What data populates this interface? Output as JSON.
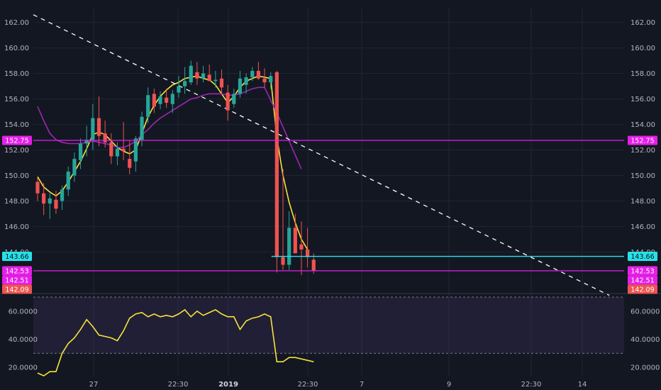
{
  "chart_data": [
    {
      "type": "candlestick",
      "ylim": [
        140.8,
        163.2
      ],
      "y_ticks": [
        "162.00",
        "160.00",
        "158.00",
        "156.00",
        "154.00",
        "152.00",
        "150.00",
        "148.00",
        "146.00",
        "144.00"
      ],
      "x_ticks": [
        "27",
        "22:30",
        "2019",
        "22:30",
        "7",
        "9",
        "22:30",
        "14"
      ],
      "grid": true,
      "up_color": "#26a69a",
      "down_color": "#ef5350",
      "candles": [
        [
          149.5,
          149.8,
          148.0,
          148.6
        ],
        [
          148.6,
          149.4,
          146.9,
          147.8
        ],
        [
          147.8,
          148.6,
          146.6,
          148.2
        ],
        [
          148.1,
          148.8,
          147.0,
          147.4
        ],
        [
          148.0,
          149.2,
          147.3,
          148.9
        ],
        [
          148.9,
          150.7,
          148.4,
          150.3
        ],
        [
          150.0,
          151.8,
          149.5,
          151.3
        ],
        [
          151.2,
          152.9,
          150.5,
          152.5
        ],
        [
          152.5,
          153.9,
          151.5,
          152.8
        ],
        [
          152.8,
          155.6,
          152.0,
          154.5
        ],
        [
          154.5,
          156.2,
          152.3,
          153.1
        ],
        [
          153.3,
          154.3,
          152.2,
          152.6
        ],
        [
          152.6,
          153.3,
          150.9,
          151.5
        ],
        [
          151.5,
          152.6,
          150.8,
          152.1
        ],
        [
          152.1,
          154.2,
          151.2,
          151.9
        ],
        [
          151.3,
          152.7,
          150.1,
          150.6
        ],
        [
          151.1,
          153.1,
          150.3,
          152.9
        ],
        [
          152.8,
          155.0,
          152.3,
          154.6
        ],
        [
          154.6,
          156.9,
          154.1,
          156.3
        ],
        [
          156.4,
          156.8,
          154.9,
          155.4
        ],
        [
          155.6,
          156.6,
          155.2,
          156.2
        ],
        [
          156.1,
          156.8,
          155.3,
          155.7
        ],
        [
          155.6,
          156.7,
          154.9,
          156.4
        ],
        [
          156.5,
          157.8,
          156.1,
          157.0
        ],
        [
          157.0,
          158.5,
          156.4,
          157.4
        ],
        [
          157.3,
          159.0,
          157.1,
          158.6
        ],
        [
          158.1,
          158.9,
          157.1,
          157.6
        ],
        [
          157.6,
          158.6,
          157.3,
          158.0
        ],
        [
          157.9,
          158.7,
          157.5,
          157.4
        ],
        [
          157.4,
          158.2,
          156.9,
          157.5
        ],
        [
          157.6,
          158.3,
          156.4,
          156.9
        ],
        [
          156.5,
          157.1,
          154.3,
          155.1
        ],
        [
          155.6,
          156.8,
          155.3,
          156.4
        ],
        [
          156.4,
          158.2,
          156.1,
          157.6
        ],
        [
          157.1,
          158.0,
          156.4,
          157.7
        ],
        [
          157.7,
          158.5,
          157.4,
          158.2
        ],
        [
          158.2,
          158.9,
          157.5,
          157.6
        ],
        [
          157.6,
          158.4,
          156.9,
          157.3
        ],
        [
          157.3,
          158.1,
          156.8,
          157.8
        ],
        [
          158.1,
          158.2,
          142.4,
          143.6
        ],
        [
          143.6,
          150.5,
          142.6,
          143.0
        ],
        [
          143.0,
          147.2,
          142.6,
          145.9
        ],
        [
          145.9,
          147.0,
          143.9,
          143.9
        ],
        [
          144.6,
          146.4,
          142.2,
          144.2
        ],
        [
          144.2,
          145.9,
          142.8,
          143.6
        ],
        [
          143.4,
          143.9,
          142.3,
          142.5
        ]
      ],
      "series": [
        {
          "name": "",
          "color": "#f7e23b",
          "values": [
            149.9,
            149.1,
            148.7,
            148.4,
            148.8,
            149.5,
            150.3,
            151.1,
            152.1,
            153.2,
            153.4,
            153.2,
            152.7,
            152.2,
            151.9,
            151.7,
            152.0,
            153.3,
            154.6,
            155.5,
            156.2,
            156.7,
            157.1,
            157.3,
            157.6,
            157.7,
            157.8,
            157.6,
            157.5,
            157.1,
            156.4,
            155.7,
            156.2,
            156.9,
            157.4,
            157.6,
            157.8,
            157.7,
            157.6,
            153.0,
            150.0,
            147.9,
            146.3,
            145.0,
            144.2,
            null
          ]
        },
        {
          "name": "",
          "color": "#9c27b0",
          "values": [
            155.4,
            154.3,
            153.3,
            152.8,
            152.6,
            152.5,
            152.5,
            152.5,
            152.6,
            152.7,
            152.6,
            152.5,
            152.4,
            152.2,
            152.2,
            152.4,
            152.7,
            153.2,
            153.6,
            154.1,
            154.5,
            154.8,
            155.1,
            155.4,
            155.7,
            156.0,
            156.1,
            156.3,
            156.4,
            156.4,
            156.4,
            156.3,
            156.3,
            156.4,
            156.6,
            156.8,
            156.9,
            156.9,
            155.9,
            154.9,
            153.8,
            152.7,
            151.6,
            150.5,
            null,
            null
          ]
        },
        {
          "name": "",
          "color": "#ffffff",
          "dashed": true,
          "x": [
            0,
            97.5
          ],
          "values": [
            162.6,
            140.6
          ]
        }
      ],
      "hlines": [
        {
          "value": 152.75,
          "color": "#e51fe8",
          "label": "152.75",
          "left_badge": true,
          "right_badge": true
        },
        {
          "value": 143.66,
          "color": "#26e2e8",
          "label": "143.66",
          "left_badge": true,
          "right_badge": true,
          "start_x": 40.3
        },
        {
          "value": 142.53,
          "color": "#e51fe8",
          "label": "142.53",
          "left_badge": true,
          "right_badge": true
        }
      ],
      "extra_badges": [
        {
          "label": "142.51",
          "color": "#e51fe8",
          "value": 142.51
        },
        {
          "label": "142.09",
          "color": "#ef5350",
          "value": 142.09
        }
      ]
    },
    {
      "type": "line",
      "ylim": [
        14.0,
        72.0
      ],
      "y_ticks": [
        "60.0000",
        "40.0000",
        "20.0000"
      ],
      "band": [
        30,
        70
      ],
      "band_color": "#7e57c2",
      "series": [
        {
          "name": "",
          "color": "#f7e23b",
          "values": [
            16,
            14,
            17,
            17,
            30,
            37,
            41,
            47,
            54,
            49,
            43,
            42,
            41,
            39,
            46,
            55,
            58,
            59,
            56,
            58,
            56,
            57,
            56,
            58,
            61,
            56,
            60,
            57,
            59,
            61,
            58,
            56,
            56,
            47,
            53,
            55,
            56,
            58,
            56,
            24,
            24,
            27,
            27,
            26,
            25,
            24
          ]
        }
      ]
    }
  ]
}
